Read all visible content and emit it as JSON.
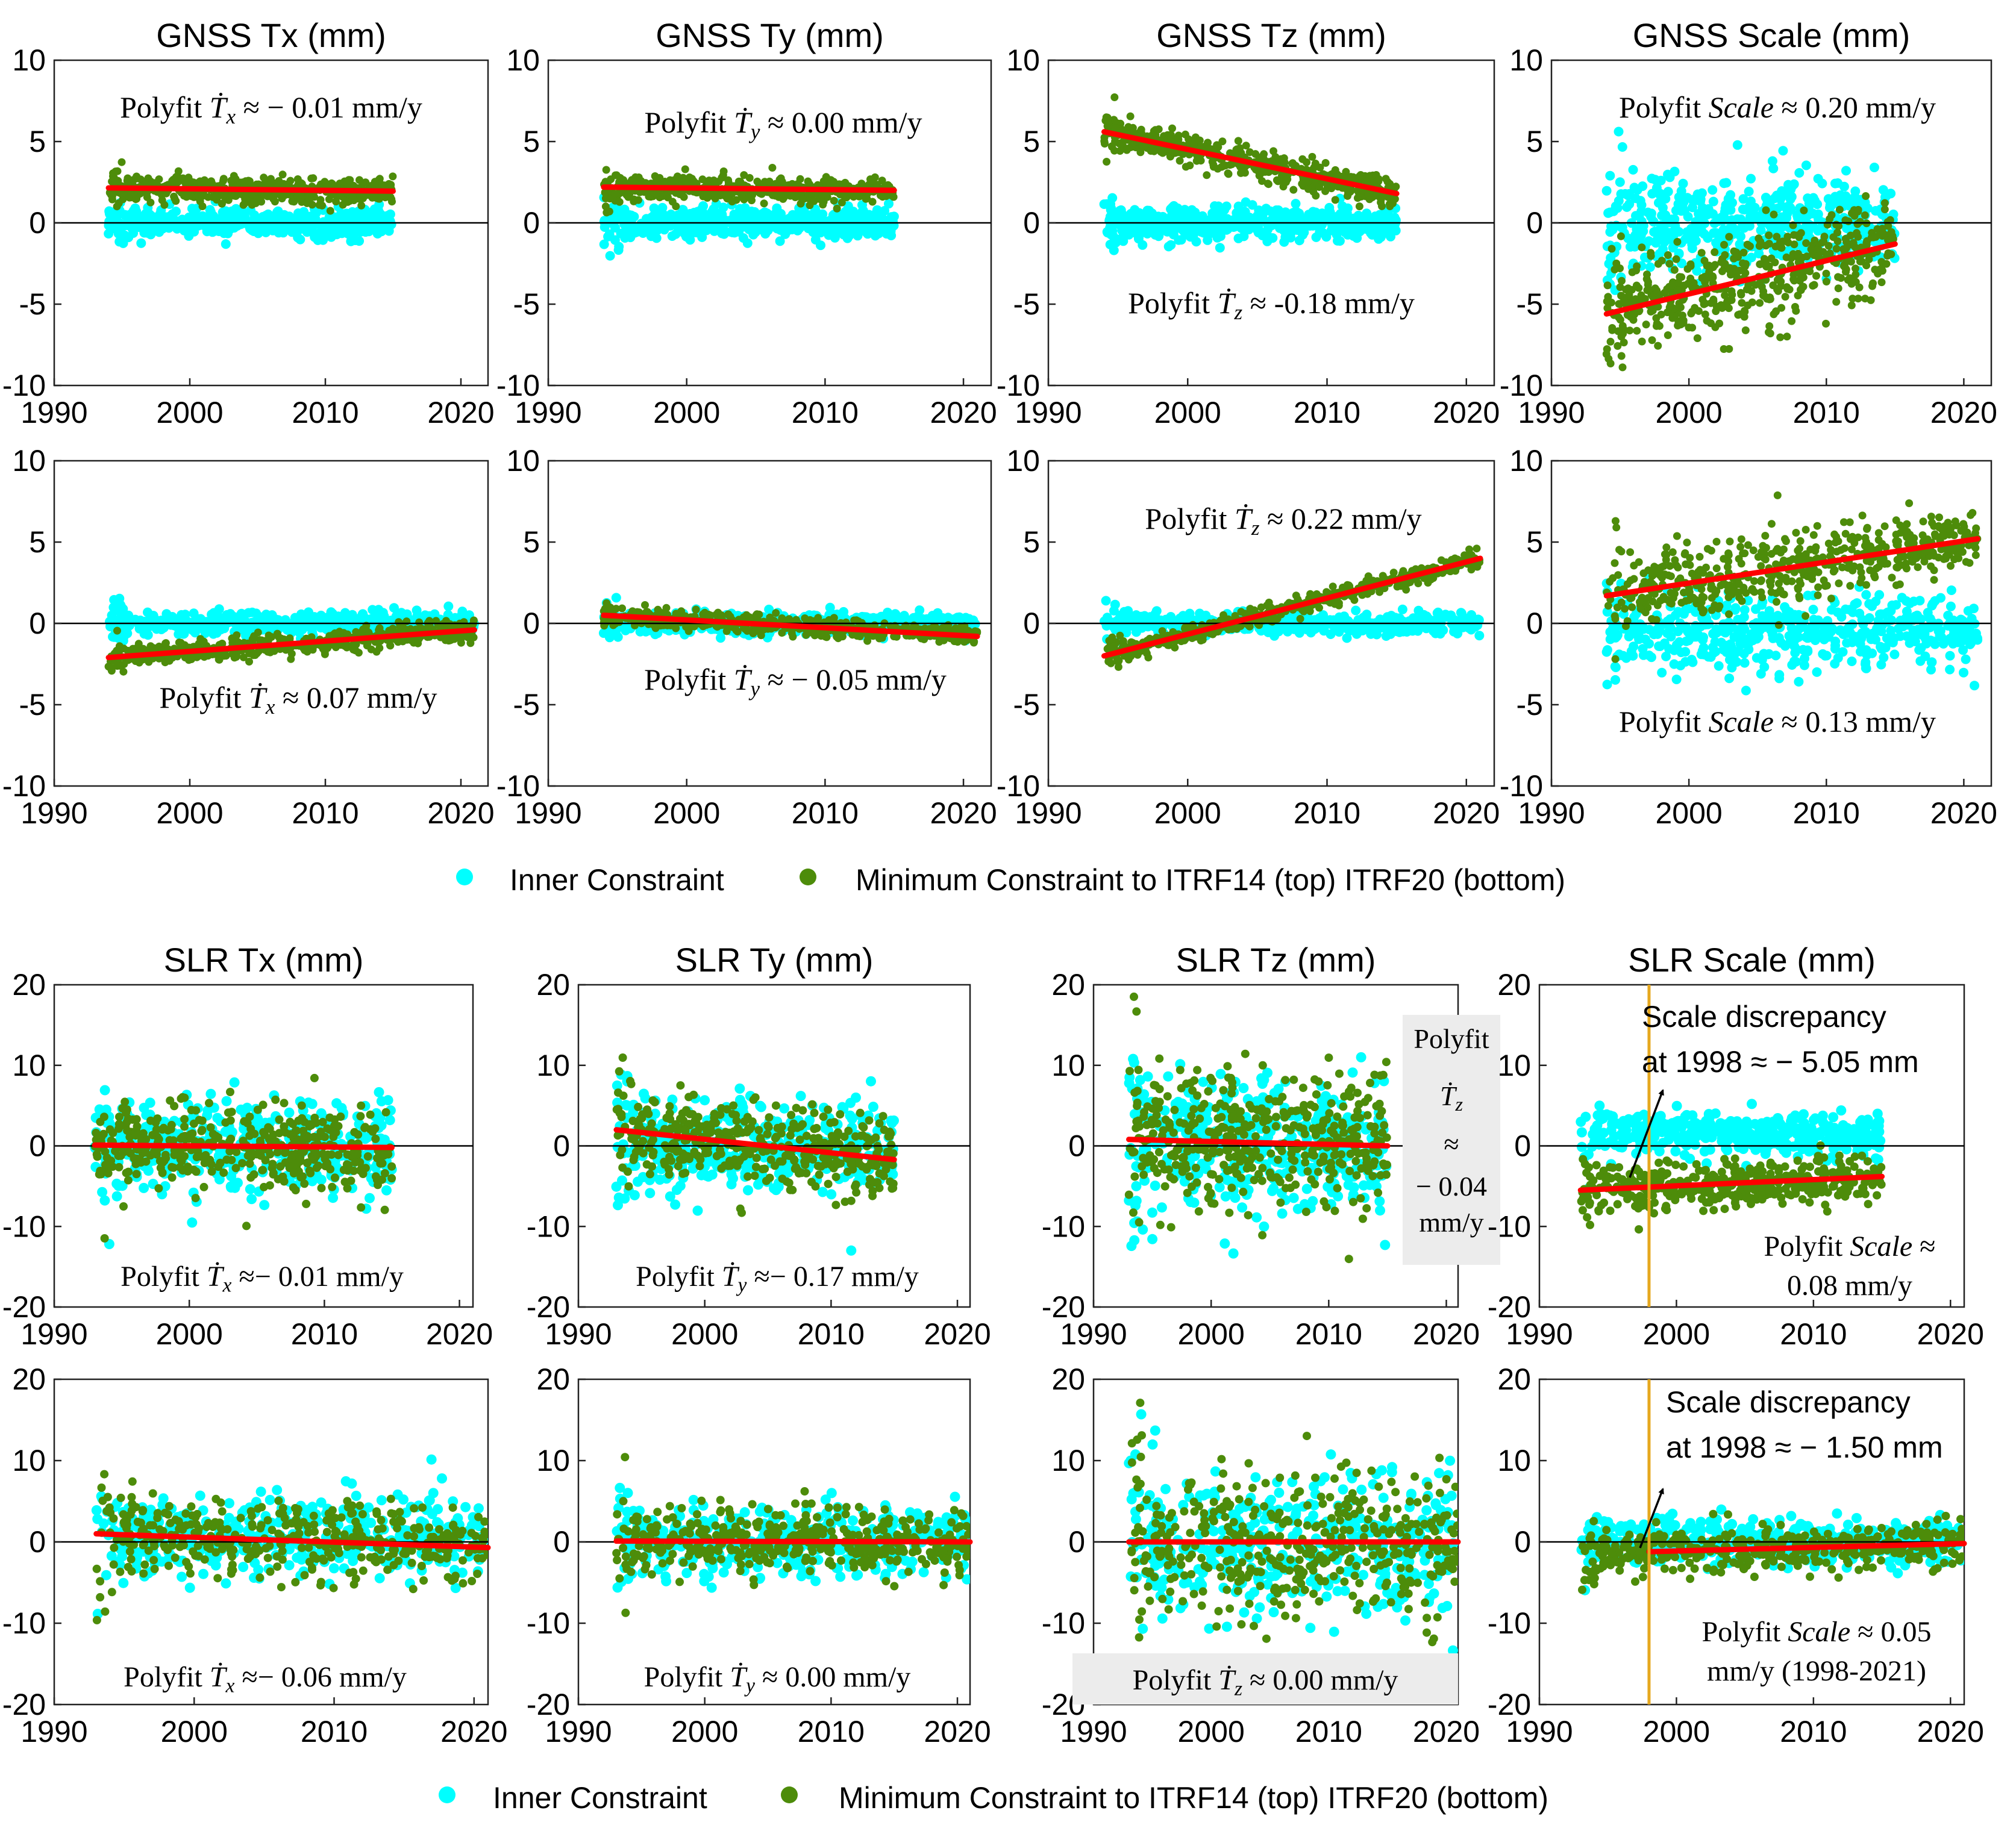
{
  "figure": {
    "colors": {
      "inner": "#00ffff",
      "minimum": "#4d8c0a",
      "fit": "#ff0000",
      "zero_line": "#000000",
      "vline": "#e6a81f",
      "ann_bg": "#ececec"
    },
    "legend_top": {
      "inner": "Inner Constraint",
      "minimum": "Minimum Constraint to ITRF14 (top) ITRF20 (bottom)"
    },
    "legend_bottom": {
      "inner": "Inner Constraint",
      "minimum": "Minimum Constraint to ITRF14 (top) ITRF20 (bottom)"
    }
  },
  "chart_data": [
    {
      "type": "scatter",
      "panel": "gnss-tx-top",
      "title": "GNSS Tx (mm)",
      "xlim": [
        1990,
        2022
      ],
      "ylim": [
        -10,
        10
      ],
      "xticks": [
        1990,
        2000,
        2010,
        2020
      ],
      "yticks": [
        -10,
        -5,
        0,
        5,
        10
      ],
      "series": [
        {
          "name": "Inner Constraint",
          "x_range": [
            1994,
            2015
          ],
          "mean": 0,
          "spread": 0.8
        },
        {
          "name": "Minimum Constraint to ITRF14",
          "x_range": [
            1994,
            2015
          ],
          "mean": 2,
          "spread": 0.7
        }
      ],
      "fit": {
        "x": [
          1994,
          2015
        ],
        "y": [
          2.15,
          1.95
        ]
      },
      "annotation": {
        "prefix": "Polyfit",
        "sym": "Ṫ",
        "sub": "x",
        "text": "≈ − 0.01 mm/y"
      }
    },
    {
      "type": "scatter",
      "panel": "gnss-ty-top",
      "title": "GNSS Ty (mm)",
      "xlim": [
        1990,
        2022
      ],
      "ylim": [
        -10,
        10
      ],
      "xticks": [
        1990,
        2000,
        2010,
        2020
      ],
      "yticks": [
        -10,
        -5,
        0,
        5,
        10
      ],
      "series": [
        {
          "name": "Inner Constraint",
          "x_range": [
            1994,
            2015
          ],
          "mean": 0,
          "spread": 0.8
        },
        {
          "name": "Minimum Constraint to ITRF14",
          "x_range": [
            1994,
            2015
          ],
          "mean": 2.1,
          "spread": 0.6
        }
      ],
      "fit": {
        "x": [
          1994,
          2015
        ],
        "y": [
          2.2,
          2.0
        ]
      },
      "annotation": {
        "prefix": "Polyfit",
        "sym": "Ṫ",
        "sub": "y",
        "text": "≈ 0.00 mm/y"
      }
    },
    {
      "type": "scatter",
      "panel": "gnss-tz-top",
      "title": "GNSS Tz (mm)",
      "xlim": [
        1990,
        2022
      ],
      "ylim": [
        -10,
        10
      ],
      "xticks": [
        1990,
        2000,
        2010,
        2020
      ],
      "yticks": [
        -10,
        -5,
        0,
        5,
        10
      ],
      "series": [
        {
          "name": "Inner Constraint",
          "x_range": [
            1994,
            2015
          ],
          "mean": 0,
          "spread": 0.9
        },
        {
          "name": "Minimum Constraint to ITRF14",
          "x_range": [
            1994,
            2015
          ],
          "mean": 3.7,
          "spread": 0.8
        }
      ],
      "fit": {
        "x": [
          1994,
          2015
        ],
        "y": [
          5.6,
          1.8
        ]
      },
      "annotation": {
        "prefix": "Polyfit",
        "sym": "Ṫ",
        "sub": "z",
        "text": "≈ -0.18 mm/y"
      }
    },
    {
      "type": "scatter",
      "panel": "gnss-scale-top",
      "title": "GNSS Scale (mm)",
      "xlim": [
        1990,
        2022
      ],
      "ylim": [
        -10,
        10
      ],
      "xticks": [
        1990,
        2000,
        2010,
        2020
      ],
      "yticks": [
        -10,
        -5,
        0,
        5,
        10
      ],
      "series": [
        {
          "name": "Inner Constraint",
          "x_range": [
            1994,
            2015
          ],
          "mean": 0,
          "spread": 2.5
        },
        {
          "name": "Minimum Constraint to ITRF14",
          "x_range": [
            1994,
            2015
          ],
          "mean": -3.5,
          "spread": 2.5
        }
      ],
      "fit": {
        "x": [
          1994,
          2015
        ],
        "y": [
          -5.6,
          -1.3
        ]
      },
      "annotation": {
        "prefix": "Polyfit",
        "sym": "Scale",
        "sub": "",
        "text": "≈ 0.20 mm/y"
      }
    },
    {
      "type": "scatter",
      "panel": "gnss-tx-bottom",
      "title": "",
      "xlim": [
        1990,
        2022
      ],
      "ylim": [
        -10,
        10
      ],
      "xticks": [
        1990,
        2000,
        2010,
        2020
      ],
      "yticks": [
        -10,
        -5,
        0,
        5,
        10
      ],
      "series": [
        {
          "name": "Inner Constraint",
          "x_range": [
            1994,
            2021
          ],
          "mean": 0,
          "spread": 0.6
        },
        {
          "name": "Minimum Constraint to ITRF20",
          "x_range": [
            1994,
            2021
          ],
          "mean": -1.3,
          "spread": 0.6
        }
      ],
      "fit": {
        "x": [
          1994,
          2021
        ],
        "y": [
          -2.1,
          -0.4
        ]
      },
      "annotation": {
        "prefix": "Polyfit",
        "sym": "Ṫ",
        "sub": "x",
        "text": "≈ 0.07 mm/y"
      }
    },
    {
      "type": "scatter",
      "panel": "gnss-ty-bottom",
      "title": "",
      "xlim": [
        1990,
        2022
      ],
      "ylim": [
        -10,
        10
      ],
      "xticks": [
        1990,
        2000,
        2010,
        2020
      ],
      "yticks": [
        -10,
        -5,
        0,
        5,
        10
      ],
      "series": [
        {
          "name": "Inner Constraint",
          "x_range": [
            1994,
            2021
          ],
          "mean": 0,
          "spread": 0.6
        },
        {
          "name": "Minimum Constraint to ITRF20",
          "x_range": [
            1994,
            2021
          ],
          "mean": -0.2,
          "spread": 0.5
        }
      ],
      "fit": {
        "x": [
          1994,
          2021
        ],
        "y": [
          0.5,
          -0.8
        ]
      },
      "annotation": {
        "prefix": "Polyfit",
        "sym": "Ṫ",
        "sub": "y",
        "text": "≈ − 0.05 mm/y"
      }
    },
    {
      "type": "scatter",
      "panel": "gnss-tz-bottom",
      "title": "",
      "xlim": [
        1990,
        2022
      ],
      "ylim": [
        -10,
        10
      ],
      "xticks": [
        1990,
        2000,
        2010,
        2020
      ],
      "yticks": [
        -10,
        -5,
        0,
        5,
        10
      ],
      "series": [
        {
          "name": "Inner Constraint",
          "x_range": [
            1994,
            2021
          ],
          "mean": 0,
          "spread": 0.6
        },
        {
          "name": "Minimum Constraint to ITRF20",
          "x_range": [
            1994,
            2021
          ],
          "mean": 1,
          "spread": 0.5
        }
      ],
      "fit": {
        "x": [
          1994,
          2021
        ],
        "y": [
          -2.0,
          4.0
        ]
      },
      "annotation": {
        "prefix": "Polyfit",
        "sym": "Ṫ",
        "sub": "z",
        "text": "≈ 0.22 mm/y"
      }
    },
    {
      "type": "scatter",
      "panel": "gnss-scale-bottom",
      "title": "",
      "xlim": [
        1990,
        2022
      ],
      "ylim": [
        -10,
        10
      ],
      "xticks": [
        1990,
        2000,
        2010,
        2020
      ],
      "yticks": [
        -10,
        -5,
        0,
        5,
        10
      ],
      "series": [
        {
          "name": "Inner Constraint",
          "x_range": [
            1994,
            2021
          ],
          "mean": -0.5,
          "spread": 2.0
        },
        {
          "name": "Minimum Constraint to ITRF20",
          "x_range": [
            1994,
            2021
          ],
          "mean": 3.5,
          "spread": 2.0
        }
      ],
      "fit": {
        "x": [
          1994,
          2021
        ],
        "y": [
          1.7,
          5.2
        ]
      },
      "annotation": {
        "prefix": "Polyfit",
        "sym": "Scale",
        "sub": "",
        "text": "≈ 0.13 mm/y"
      }
    },
    {
      "type": "scatter",
      "panel": "slr-tx-top",
      "title": "SLR Tx (mm)",
      "xlim": [
        1990,
        2021
      ],
      "ylim": [
        -20,
        20
      ],
      "xticks": [
        1990,
        2000,
        2010,
        2020
      ],
      "yticks": [
        -20,
        -10,
        0,
        10,
        20
      ],
      "series": [
        {
          "name": "Inner Constraint",
          "x_range": [
            1993,
            2015
          ],
          "mean": 0,
          "spread": 5
        },
        {
          "name": "Minimum Constraint to ITRF14",
          "x_range": [
            1993,
            2015
          ],
          "mean": 0,
          "spread": 5
        }
      ],
      "fit": {
        "x": [
          1993,
          2015
        ],
        "y": [
          0.1,
          -0.2
        ]
      },
      "annotation": {
        "prefix": "Polyfit",
        "sym": "Ṫ",
        "sub": "x",
        "text": "≈− 0.01 mm/y"
      }
    },
    {
      "type": "scatter",
      "panel": "slr-ty-top",
      "title": "SLR Ty (mm)",
      "xlim": [
        1990,
        2021
      ],
      "ylim": [
        -20,
        20
      ],
      "xticks": [
        1990,
        2000,
        2010,
        2020
      ],
      "yticks": [
        -20,
        -10,
        0,
        10,
        20
      ],
      "series": [
        {
          "name": "Inner Constraint",
          "x_range": [
            1993,
            2015
          ],
          "mean": 0,
          "spread": 5
        },
        {
          "name": "Minimum Constraint to ITRF14",
          "x_range": [
            1993,
            2015
          ],
          "mean": 0.5,
          "spread": 4.5
        }
      ],
      "fit": {
        "x": [
          1993,
          2015
        ],
        "y": [
          2.0,
          -1.7
        ]
      },
      "annotation": {
        "prefix": "Polyfit",
        "sym": "Ṫ",
        "sub": "y",
        "text": "≈− 0.17 mm/y"
      }
    },
    {
      "type": "scatter",
      "panel": "slr-tz-top",
      "title": "SLR Tz (mm)",
      "xlim": [
        1990,
        2021
      ],
      "ylim": [
        -20,
        20
      ],
      "xticks": [
        1990,
        2000,
        2010,
        2020
      ],
      "yticks": [
        -20,
        -10,
        0,
        10,
        20
      ],
      "series": [
        {
          "name": "Inner Constraint",
          "x_range": [
            1993,
            2015
          ],
          "mean": 0,
          "spread": 8
        },
        {
          "name": "Minimum Constraint to ITRF14",
          "x_range": [
            1993,
            2015
          ],
          "mean": 0,
          "spread": 8
        }
      ],
      "fit": {
        "x": [
          1993,
          2015
        ],
        "y": [
          0.8,
          0.0
        ]
      },
      "annotation": {
        "prefix": "Polyfit",
        "sym": "Ṫ",
        "sub": "z",
        "text": "≈",
        "text2": "− 0.04",
        "text3": "mm/y"
      }
    },
    {
      "type": "scatter",
      "panel": "slr-scale-top",
      "title": "SLR Scale (mm)",
      "xlim": [
        1990,
        2021
      ],
      "ylim": [
        -20,
        20
      ],
      "xticks": [
        1990,
        2000,
        2010,
        2020
      ],
      "yticks": [
        -20,
        -10,
        0,
        10,
        20
      ],
      "series": [
        {
          "name": "Inner Constraint",
          "x_range": [
            1993,
            2015
          ],
          "mean": 1.5,
          "spread": 2.5
        },
        {
          "name": "Minimum Constraint to ITRF14",
          "x_range": [
            1993,
            2015
          ],
          "mean": -4.5,
          "spread": 2.5
        }
      ],
      "fit": {
        "x": [
          1993,
          2015
        ],
        "y": [
          -5.5,
          -3.8
        ]
      },
      "vline_x": 1998,
      "annotation": {
        "prefix": "Polyfit",
        "sym": "Scale",
        "sub": "",
        "text": "≈",
        "text2": "0.08 mm/y"
      },
      "discrepancy": {
        "line1": "Scale discrepancy",
        "line2": "at 1998 ≈ − 5.05 mm"
      }
    },
    {
      "type": "scatter",
      "panel": "slr-tx-bottom",
      "title": "",
      "xlim": [
        1990,
        2021
      ],
      "ylim": [
        -20,
        20
      ],
      "xticks": [
        1990,
        2000,
        2010,
        2020
      ],
      "yticks": [
        -20,
        -10,
        0,
        10,
        20
      ],
      "series": [
        {
          "name": "Inner Constraint",
          "x_range": [
            1993,
            2021
          ],
          "mean": 0.5,
          "spread": 4.5
        },
        {
          "name": "Minimum Constraint to ITRF20",
          "x_range": [
            1993,
            2021
          ],
          "mean": 0.5,
          "spread": 4.5
        }
      ],
      "fit": {
        "x": [
          1993,
          2021
        ],
        "y": [
          1.0,
          -0.7
        ]
      },
      "annotation": {
        "prefix": "Polyfit",
        "sym": "Ṫ",
        "sub": "x",
        "text": "≈− 0.06 mm/y"
      }
    },
    {
      "type": "scatter",
      "panel": "slr-ty-bottom",
      "title": "",
      "xlim": [
        1990,
        2021
      ],
      "ylim": [
        -20,
        20
      ],
      "xticks": [
        1990,
        2000,
        2010,
        2020
      ],
      "yticks": [
        -20,
        -10,
        0,
        10,
        20
      ],
      "series": [
        {
          "name": "Inner Constraint",
          "x_range": [
            1993,
            2021
          ],
          "mean": 0,
          "spread": 4
        },
        {
          "name": "Minimum Constraint to ITRF20",
          "x_range": [
            1993,
            2021
          ],
          "mean": 0,
          "spread": 4
        }
      ],
      "fit": {
        "x": [
          1993,
          2021
        ],
        "y": [
          0.1,
          0.0
        ]
      },
      "annotation": {
        "prefix": "Polyfit",
        "sym": "Ṫ",
        "sub": "y",
        "text": "≈ 0.00 mm/y"
      }
    },
    {
      "type": "scatter",
      "panel": "slr-tz-bottom",
      "title": "",
      "xlim": [
        1990,
        2021
      ],
      "ylim": [
        -20,
        20
      ],
      "xticks": [
        1990,
        2000,
        2010,
        2020
      ],
      "yticks": [
        -20,
        -10,
        0,
        10,
        20
      ],
      "series": [
        {
          "name": "Inner Constraint",
          "x_range": [
            1993,
            2021
          ],
          "mean": 0,
          "spread": 8
        },
        {
          "name": "Minimum Constraint to ITRF20",
          "x_range": [
            1993,
            2021
          ],
          "mean": 0,
          "spread": 8
        }
      ],
      "fit": {
        "x": [
          1993,
          2021
        ],
        "y": [
          0.0,
          0.0
        ]
      },
      "annotation": {
        "prefix": "Polyfit",
        "sym": "Ṫ",
        "sub": "z",
        "text": "≈ 0.00 mm/y"
      }
    },
    {
      "type": "scatter",
      "panel": "slr-scale-bottom",
      "title": "",
      "xlim": [
        1990,
        2021
      ],
      "ylim": [
        -20,
        20
      ],
      "xticks": [
        1990,
        2000,
        2010,
        2020
      ],
      "yticks": [
        -20,
        -10,
        0,
        10,
        20
      ],
      "series": [
        {
          "name": "Inner Constraint",
          "x_range": [
            1993,
            2021
          ],
          "mean": 0,
          "spread": 2.5
        },
        {
          "name": "Minimum Constraint to ITRF20",
          "x_range": [
            1993,
            2021
          ],
          "mean": -1,
          "spread": 2.5
        }
      ],
      "fit": {
        "x": [
          1998,
          2021
        ],
        "y": [
          -1.2,
          -0.2
        ]
      },
      "vline_x": 1998,
      "annotation": {
        "prefix": "Polyfit",
        "sym": "Scale",
        "sub": "",
        "text": "≈ 0.05",
        "text2": "mm/y (1998-2021)"
      },
      "discrepancy": {
        "line1": "Scale discrepancy",
        "line2": "at 1998 ≈ − 1.50 mm"
      }
    }
  ]
}
